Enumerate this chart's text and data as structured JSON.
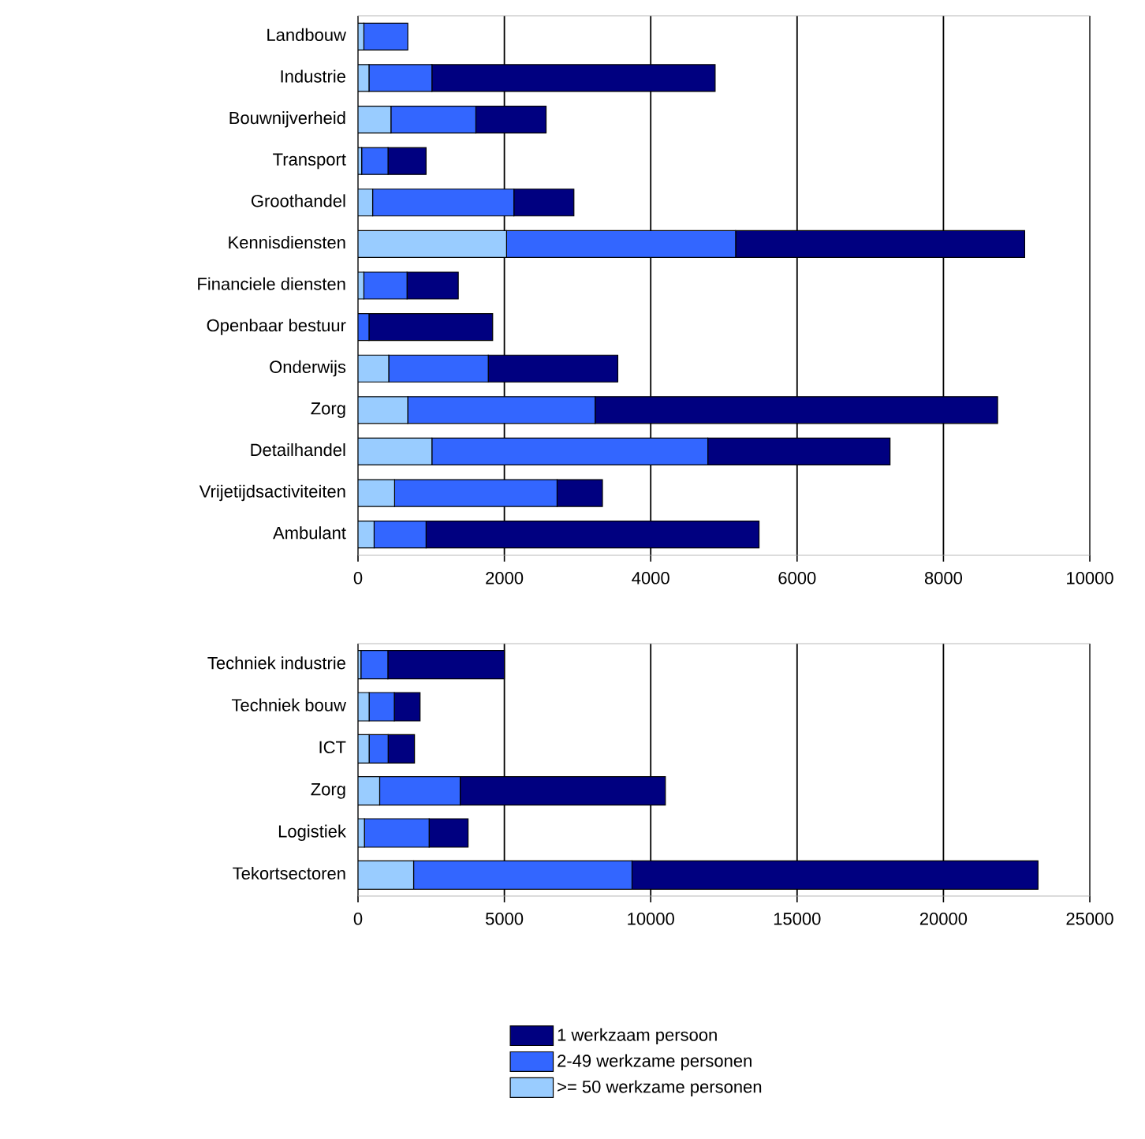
{
  "chart_data": [
    {
      "type": "bar",
      "orientation": "horizontal",
      "stacked": true,
      "grid": "x",
      "categories": [
        "Landbouw",
        "Industrie",
        "Bouwnijverheid",
        "Transport",
        "Groothandel",
        "Kennisdiensten",
        "Financiele diensten",
        "Openbaar bestuur",
        "Onderwijs",
        "Zorg",
        "Detailhandel",
        "Vrijetijdsactiviteiten",
        "Ambulant"
      ],
      "xlim": [
        0,
        10000
      ],
      "xticks": [
        0,
        2000,
        4000,
        6000,
        8000,
        10000
      ],
      "series": [
        {
          "color": "#99ccff",
          "values": [
            80,
            150,
            450,
            50,
            200,
            2030,
            80,
            0,
            420,
            680,
            1010,
            500,
            220
          ]
        },
        {
          "color": "#3366ff",
          "values": [
            600,
            860,
            1160,
            360,
            1930,
            3130,
            590,
            150,
            1360,
            2560,
            3770,
            2220,
            710
          ]
        },
        {
          "color": "#000080",
          "values": [
            0,
            3870,
            960,
            520,
            820,
            3950,
            700,
            1690,
            1770,
            5500,
            2490,
            620,
            4550
          ]
        }
      ]
    },
    {
      "type": "bar",
      "orientation": "horizontal",
      "stacked": true,
      "grid": "x",
      "legend": "bottom",
      "categories": [
        "Techniek industrie",
        "Techniek bouw",
        "ICT",
        "Zorg",
        "Logistiek",
        "Tekortsectoren"
      ],
      "xlim": [
        0,
        25000
      ],
      "xticks": [
        0,
        5000,
        10000,
        15000,
        20000,
        25000
      ],
      "series": [
        {
          "name": ">= 50 werkzame personen",
          "color": "#99ccff",
          "values": [
            100,
            380,
            380,
            740,
            220,
            1900
          ]
        },
        {
          "name": "2-49 werkzame personen",
          "color": "#3366ff",
          "values": [
            920,
            860,
            650,
            2750,
            2210,
            7460
          ]
        },
        {
          "name": "1 werkzaam persoon",
          "color": "#000080",
          "values": [
            3980,
            880,
            900,
            7010,
            1330,
            13870
          ]
        }
      ]
    }
  ]
}
